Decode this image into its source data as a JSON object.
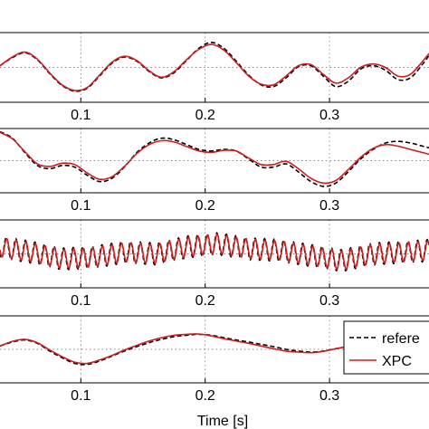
{
  "chart_data": {
    "type": "line",
    "xlabel": "Time [s]",
    "xlim": [
      0.035,
      0.38
    ],
    "xticks": [
      0.1,
      0.2,
      0.3
    ],
    "xtick_labels": [
      "0.1",
      "0.2",
      "0.3"
    ],
    "grid": true,
    "legend_placement": "lower-right of bottom panel",
    "legend": [
      "refere",
      "XPC"
    ],
    "colors": {
      "reference": "#000000",
      "xpc": "#cc1f1f"
    },
    "panels": [
      {
        "ylim": [
          -1.0,
          1.0
        ],
        "series": [
          {
            "name": "refere",
            "style": "dashed",
            "x": [
              0.035,
              0.045,
              0.055,
              0.065,
              0.075,
              0.085,
              0.095,
              0.105,
              0.115,
              0.125,
              0.135,
              0.145,
              0.155,
              0.165,
              0.175,
              0.185,
              0.195,
              0.205,
              0.215,
              0.225,
              0.235,
              0.245,
              0.255,
              0.265,
              0.275,
              0.285,
              0.295,
              0.305,
              0.315,
              0.325,
              0.335,
              0.345,
              0.355,
              0.365,
              0.375,
              0.38
            ],
            "y": [
              0.05,
              0.28,
              0.42,
              0.22,
              -0.18,
              -0.52,
              -0.68,
              -0.6,
              -0.25,
              0.12,
              0.3,
              0.18,
              -0.12,
              -0.3,
              -0.15,
              0.2,
              0.55,
              0.72,
              0.55,
              0.18,
              -0.22,
              -0.5,
              -0.55,
              -0.3,
              0.02,
              0.05,
              -0.25,
              -0.55,
              -0.4,
              -0.05,
              0.05,
              -0.08,
              -0.35,
              -0.3,
              0.1,
              0.35
            ]
          },
          {
            "name": "XPC",
            "style": "solid",
            "x": [
              0.035,
              0.045,
              0.055,
              0.065,
              0.075,
              0.085,
              0.095,
              0.105,
              0.115,
              0.125,
              0.135,
              0.145,
              0.155,
              0.165,
              0.175,
              0.185,
              0.195,
              0.205,
              0.215,
              0.225,
              0.235,
              0.245,
              0.255,
              0.265,
              0.275,
              0.285,
              0.295,
              0.305,
              0.315,
              0.325,
              0.335,
              0.345,
              0.355,
              0.365,
              0.375,
              0.38
            ],
            "y": [
              0.05,
              0.3,
              0.44,
              0.24,
              -0.16,
              -0.5,
              -0.66,
              -0.58,
              -0.22,
              0.15,
              0.32,
              0.2,
              -0.1,
              -0.28,
              -0.12,
              0.22,
              0.52,
              0.66,
              0.5,
              0.14,
              -0.25,
              -0.48,
              -0.5,
              -0.25,
              0.05,
              0.08,
              -0.2,
              -0.45,
              -0.3,
              0.0,
              0.1,
              0.0,
              -0.25,
              -0.2,
              0.18,
              0.4
            ]
          }
        ]
      },
      {
        "ylim": [
          -1.0,
          1.0
        ],
        "series": [
          {
            "name": "refere",
            "style": "dashed",
            "x": [
              0.035,
              0.045,
              0.055,
              0.065,
              0.075,
              0.085,
              0.095,
              0.105,
              0.115,
              0.125,
              0.135,
              0.145,
              0.155,
              0.165,
              0.175,
              0.185,
              0.195,
              0.205,
              0.215,
              0.225,
              0.235,
              0.245,
              0.255,
              0.265,
              0.275,
              0.285,
              0.295,
              0.305,
              0.315,
              0.325,
              0.335,
              0.345,
              0.355,
              0.365,
              0.375,
              0.38
            ],
            "y": [
              0.9,
              0.7,
              0.25,
              -0.15,
              -0.25,
              -0.15,
              -0.2,
              -0.45,
              -0.65,
              -0.55,
              -0.2,
              0.25,
              0.55,
              0.7,
              0.65,
              0.5,
              0.35,
              0.3,
              0.35,
              0.3,
              0.05,
              -0.2,
              -0.2,
              -0.1,
              -0.35,
              -0.65,
              -0.8,
              -0.7,
              -0.35,
              0.05,
              0.35,
              0.55,
              0.6,
              0.55,
              0.45,
              0.4
            ]
          },
          {
            "name": "XPC",
            "style": "solid",
            "x": [
              0.035,
              0.045,
              0.055,
              0.065,
              0.075,
              0.085,
              0.095,
              0.105,
              0.115,
              0.125,
              0.135,
              0.145,
              0.155,
              0.165,
              0.175,
              0.185,
              0.195,
              0.205,
              0.215,
              0.225,
              0.235,
              0.245,
              0.255,
              0.265,
              0.275,
              0.285,
              0.295,
              0.305,
              0.315,
              0.325,
              0.335,
              0.345,
              0.355,
              0.365,
              0.375,
              0.38
            ],
            "y": [
              0.88,
              0.68,
              0.28,
              -0.1,
              -0.18,
              -0.08,
              -0.12,
              -0.38,
              -0.58,
              -0.5,
              -0.18,
              0.22,
              0.5,
              0.62,
              0.58,
              0.44,
              0.3,
              0.26,
              0.32,
              0.3,
              0.08,
              -0.12,
              -0.12,
              -0.02,
              -0.25,
              -0.55,
              -0.7,
              -0.62,
              -0.28,
              0.1,
              0.38,
              0.5,
              0.45,
              0.35,
              0.25,
              0.2
            ]
          }
        ]
      },
      {
        "ylim": [
          -1.0,
          1.0
        ],
        "oscillation": {
          "frequency_hz": 130,
          "amplitude": 0.28
        },
        "series": [
          {
            "name": "refere",
            "style": "dashed",
            "x": [
              0.035,
              0.06,
              0.085,
              0.11,
              0.135,
              0.16,
              0.185,
              0.21,
              0.235,
              0.26,
              0.285,
              0.31,
              0.335,
              0.36,
              0.38
            ],
            "y": [
              0.2,
              0.05,
              -0.15,
              -0.1,
              0.05,
              0.0,
              0.2,
              0.3,
              0.15,
              0.1,
              -0.05,
              -0.2,
              0.0,
              0.05,
              0.1
            ],
            "amplitude_scale": 1.15
          },
          {
            "name": "XPC",
            "style": "solid",
            "x": [
              0.035,
              0.06,
              0.085,
              0.11,
              0.135,
              0.16,
              0.185,
              0.21,
              0.235,
              0.26,
              0.285,
              0.31,
              0.335,
              0.36,
              0.38
            ],
            "y": [
              0.2,
              0.05,
              -0.15,
              -0.1,
              0.05,
              0.0,
              0.2,
              0.3,
              0.15,
              0.1,
              -0.05,
              -0.2,
              0.0,
              0.05,
              0.1
            ],
            "amplitude_scale": 1.0
          }
        ]
      },
      {
        "ylim": [
          -1.0,
          1.0
        ],
        "series": [
          {
            "name": "refere",
            "style": "dashed",
            "x": [
              0.035,
              0.045,
              0.055,
              0.065,
              0.075,
              0.085,
              0.095,
              0.105,
              0.115,
              0.125,
              0.135,
              0.145,
              0.155,
              0.165,
              0.175,
              0.185,
              0.195,
              0.205,
              0.215,
              0.225,
              0.235,
              0.245,
              0.255,
              0.265,
              0.275,
              0.285,
              0.295,
              0.305,
              0.315,
              0.325,
              0.335,
              0.345,
              0.355,
              0.365,
              0.375,
              0.38
            ],
            "y": [
              0.1,
              0.22,
              0.28,
              0.18,
              -0.05,
              -0.25,
              -0.42,
              -0.45,
              -0.35,
              -0.2,
              -0.05,
              0.08,
              0.2,
              0.3,
              0.38,
              0.42,
              0.45,
              0.42,
              0.35,
              0.28,
              0.22,
              0.15,
              0.08,
              0.0,
              -0.05,
              -0.08,
              -0.05,
              0.02,
              0.08,
              0.05,
              0.0,
              0.05,
              0.1,
              0.12,
              0.1,
              0.08
            ]
          },
          {
            "name": "XPC",
            "style": "solid",
            "x": [
              0.035,
              0.045,
              0.055,
              0.065,
              0.075,
              0.085,
              0.095,
              0.105,
              0.115,
              0.125,
              0.135,
              0.145,
              0.155,
              0.165,
              0.175,
              0.185,
              0.195,
              0.205,
              0.215,
              0.225,
              0.235,
              0.245,
              0.255,
              0.265,
              0.275,
              0.285,
              0.295,
              0.305,
              0.315,
              0.325,
              0.335,
              0.345,
              0.355,
              0.365,
              0.375,
              0.38
            ],
            "y": [
              0.1,
              0.24,
              0.3,
              0.2,
              -0.02,
              -0.22,
              -0.38,
              -0.42,
              -0.32,
              -0.18,
              -0.02,
              0.12,
              0.25,
              0.35,
              0.42,
              0.45,
              0.46,
              0.4,
              0.32,
              0.25,
              0.18,
              0.1,
              0.02,
              -0.05,
              -0.08,
              -0.1,
              -0.06,
              0.02,
              0.08,
              0.06,
              0.02,
              0.06,
              0.12,
              0.14,
              0.12,
              0.1
            ]
          }
        ]
      }
    ]
  }
}
